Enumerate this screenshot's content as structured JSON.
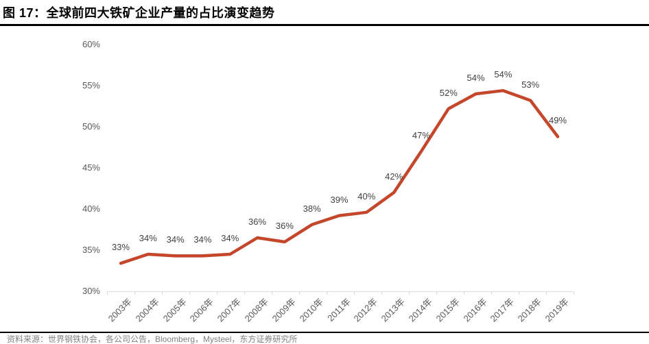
{
  "header": {
    "title": "图 17：全球前四大铁矿企业产量的占比演变趋势"
  },
  "chart_data": {
    "type": "line",
    "title": "全球前四大铁矿企业产量的占比演变趋势",
    "categories": [
      "2003年",
      "2004年",
      "2005年",
      "2006年",
      "2007年",
      "2008年",
      "2009年",
      "2010年",
      "2011年",
      "2012年",
      "2013年",
      "2014年",
      "2015年",
      "2016年",
      "2017年",
      "2018年",
      "2019年"
    ],
    "values": [
      33,
      34,
      34,
      34,
      34,
      36,
      36,
      38,
      39,
      40,
      42,
      47,
      52,
      54,
      54,
      53,
      49
    ],
    "values_precise": [
      33.4,
      34.5,
      34.3,
      34.3,
      34.5,
      36.5,
      36.0,
      38.1,
      39.2,
      39.6,
      42.0,
      47.0,
      52.2,
      54.0,
      54.4,
      53.2,
      48.8
    ],
    "data_labels": [
      "33%",
      "34%",
      "34%",
      "34%",
      "34%",
      "36%",
      "36%",
      "38%",
      "39%",
      "40%",
      "42%",
      "47%",
      "52%",
      "54%",
      "54%",
      "53%",
      "49%"
    ],
    "y_ticks": [
      60,
      55,
      50,
      45,
      40,
      35,
      30
    ],
    "y_tick_labels": [
      "60%",
      "55%",
      "50%",
      "45%",
      "40%",
      "35%",
      "30%"
    ],
    "ylim": [
      30,
      60
    ],
    "grid": false,
    "legend": "none",
    "line_color": "#C4462B",
    "data_label_color": "#404040",
    "axis_label_color": "#595959",
    "axis_line_color": "#D9D9D9"
  },
  "footer": {
    "source_text": "资料来源：世界钢铁协会，各公司公告，Bloomberg，Mysteel，东方证券研究所"
  }
}
